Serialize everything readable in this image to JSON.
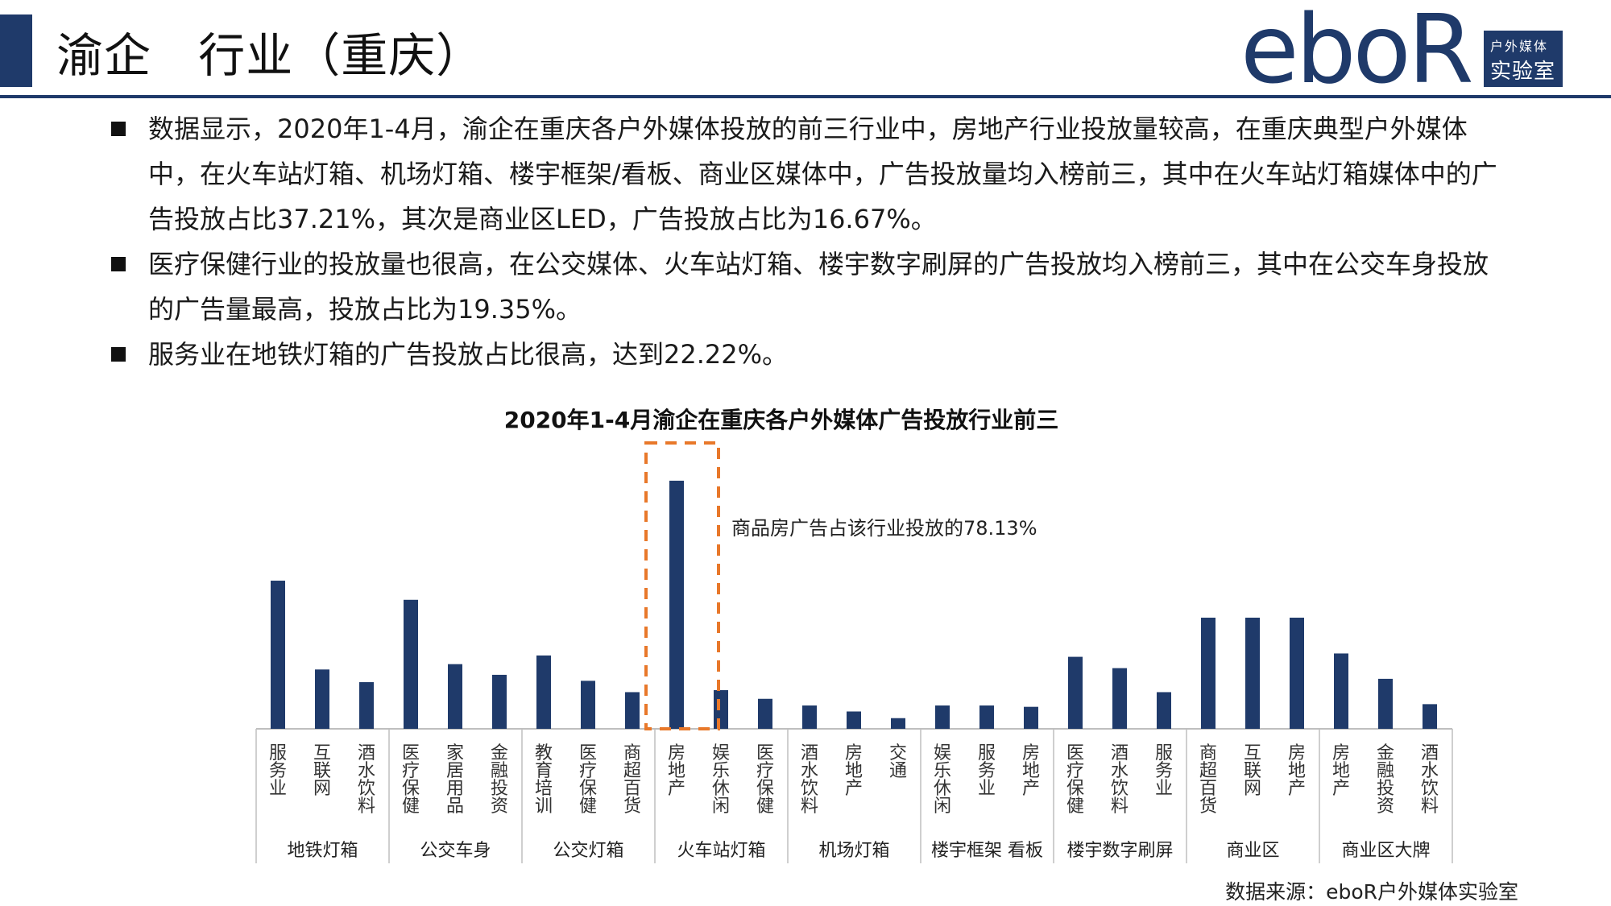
{
  "header": {
    "title": "渝企   行业（重庆）"
  },
  "logo": {
    "word": "eboR",
    "line1": "户外媒体",
    "line2": "实验室"
  },
  "bullets": [
    "数据显示，2020年1-4月，渝企在重庆各户外媒体投放的前三行业中，房地产行业投放量较高，在重庆典型户外媒体中，在火车站灯箱、机场灯箱、楼宇框架/看板、商业区媒体中，广告投放量均入榜前三，其中在火车站灯箱媒体中的广告投放占比37.21%，其次是商业区LED，广告投放占比为16.67%。",
    "医疗保健行业的投放量也很高，在公交媒体、火车站灯箱、楼宇数字刷屏的广告投放均入榜前三，其中在公交车身投放的广告量最高，投放占比为19.35%。",
    "服务业在地铁灯箱的广告投放占比很高，达到22.22%。"
  ],
  "source": "数据来源：eboR户外媒体实验室",
  "colors": {
    "bar": "#1f3a6a",
    "highlight": "#e8782a",
    "axis": "#bfbfbf"
  },
  "chart_data": {
    "type": "bar",
    "title": "2020年1-4月渝企在重庆各户外媒体广告投放行业前三",
    "annotation": "商品房广告占该行业投放的78.13%",
    "highlight_group": "火车站灯箱",
    "groups": [
      {
        "name": "地铁灯箱",
        "items": [
          {
            "label": "服务业",
            "value": 22.22
          },
          {
            "label": "互联网",
            "value": 8.9
          },
          {
            "label": "酒水饮料",
            "value": 7.0
          }
        ]
      },
      {
        "name": "公交车身",
        "items": [
          {
            "label": "医疗保健",
            "value": 19.35
          },
          {
            "label": "家居用品",
            "value": 9.7
          },
          {
            "label": "金融投资",
            "value": 8.1
          }
        ]
      },
      {
        "name": "公交灯箱",
        "items": [
          {
            "label": "教育培训",
            "value": 11.0
          },
          {
            "label": "医疗保健",
            "value": 7.2
          },
          {
            "label": "商超百货",
            "value": 5.5
          }
        ]
      },
      {
        "name": "火车站灯箱",
        "items": [
          {
            "label": "房地产",
            "value": 37.21
          },
          {
            "label": "娱乐休闲",
            "value": 5.8
          },
          {
            "label": "医疗保健",
            "value": 4.5
          }
        ]
      },
      {
        "name": "机场灯箱",
        "items": [
          {
            "label": "酒水饮料",
            "value": 3.5
          },
          {
            "label": "房地产",
            "value": 2.6
          },
          {
            "label": "交通",
            "value": 1.6
          }
        ]
      },
      {
        "name": "楼宇框架 看板",
        "items": [
          {
            "label": "娱乐休闲",
            "value": 3.5
          },
          {
            "label": "服务业",
            "value": 3.5
          },
          {
            "label": "房地产",
            "value": 3.3
          }
        ]
      },
      {
        "name": "楼宇数字刷屏",
        "items": [
          {
            "label": "医疗保健",
            "value": 10.8
          },
          {
            "label": "酒水饮料",
            "value": 9.1
          },
          {
            "label": "服务业",
            "value": 5.5
          }
        ]
      },
      {
        "name": "商业区",
        "items": [
          {
            "label": "商超百货",
            "value": 16.67
          },
          {
            "label": "互联网",
            "value": 16.67
          },
          {
            "label": "房地产",
            "value": 16.67
          }
        ]
      },
      {
        "name": "商业区大牌",
        "items": [
          {
            "label": "房地产",
            "value": 11.3
          },
          {
            "label": "金融投资",
            "value": 7.5
          },
          {
            "label": "酒水饮料",
            "value": 3.7
          }
        ]
      }
    ],
    "ylim": [
      0,
      40
    ],
    "grid": false,
    "legend": "none"
  }
}
